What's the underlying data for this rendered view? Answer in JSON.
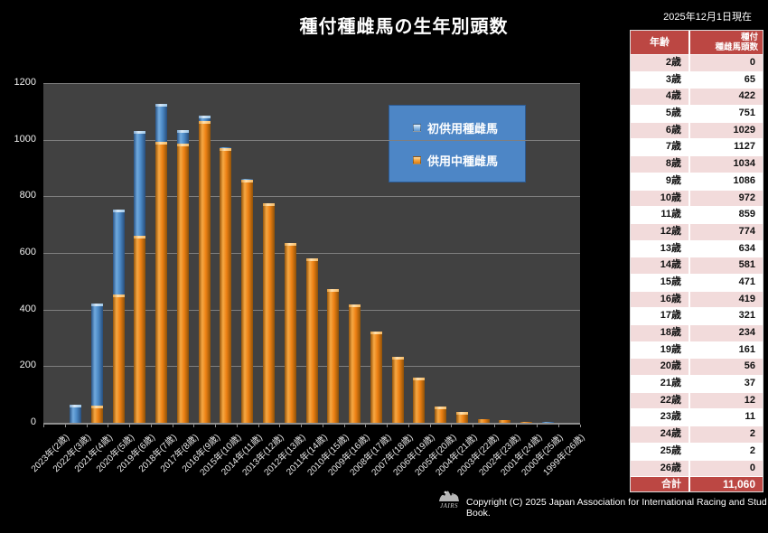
{
  "page": {
    "date_label": "2025年12月1日現在",
    "title": "種付種雌馬の生年別頭数"
  },
  "colors": {
    "background": "#000000",
    "plot_background": "#414141",
    "gridline": "#7f7f7f",
    "bar_blue": "#5b94cf",
    "bar_orange": "#ec8013",
    "legend_background": "#4d86c6",
    "table_header_background": "#bc4743",
    "table_row_pink": "#f2dbdb",
    "table_row_white": "#ffffff"
  },
  "chart_data": {
    "type": "bar",
    "stacked": true,
    "title": "種付種雌馬の生年別頭数",
    "xlabel": "",
    "ylabel": "",
    "ylim": [
      0,
      1200
    ],
    "yticks": [
      0,
      200,
      400,
      600,
      800,
      1000,
      1200
    ],
    "grid": true,
    "legend_position": "inside-upper-right",
    "categories": [
      "2023年(2歳)",
      "2022年(3歳)",
      "2021年(4歳)",
      "2020年(5歳)",
      "2019年(6歳)",
      "2018年(7歳)",
      "2017年(8歳)",
      "2016年(9歳)",
      "2015年(10歳)",
      "2014年(11歳)",
      "2013年(12歳)",
      "2012年(13歳)",
      "2011年(14歳)",
      "2010年(15歳)",
      "2009年(16歳)",
      "2008年(17歳)",
      "2007年(18歳)",
      "2006年(19歳)",
      "2005年(20歳)",
      "2004年(21歳)",
      "2003年(22歳)",
      "2002年(23歳)",
      "2001年(24歳)",
      "2000年(25歳)",
      "1999年(26歳)"
    ],
    "series": [
      {
        "name": "初供用種雌馬",
        "color_key": "blue",
        "values": [
          0,
          65,
          362,
          299,
          369,
          133,
          47,
          19,
          2,
          2,
          0,
          0,
          0,
          0,
          0,
          0,
          0,
          0,
          0,
          0,
          0,
          0,
          0,
          2,
          0
        ]
      },
      {
        "name": "供用中種雌馬",
        "color_key": "orange",
        "values": [
          0,
          0,
          60,
          452,
          660,
          994,
          987,
          1067,
          970,
          857,
          774,
          634,
          581,
          471,
          419,
          321,
          234,
          161,
          56,
          37,
          12,
          11,
          2,
          0,
          0
        ]
      }
    ],
    "stack_order_bottom_to_top": [
      "供用中種雌馬",
      "初供用種雌馬"
    ],
    "totals": [
      0,
      65,
      422,
      751,
      1029,
      1127,
      1034,
      1086,
      972,
      859,
      774,
      634,
      581,
      471,
      419,
      321,
      234,
      161,
      56,
      37,
      12,
      11,
      2,
      2,
      0
    ]
  },
  "table": {
    "header_age": "年齢",
    "header_count": "種付\n種雌馬頭数",
    "rows": [
      [
        "2歳",
        "0"
      ],
      [
        "3歳",
        "65"
      ],
      [
        "4歳",
        "422"
      ],
      [
        "5歳",
        "751"
      ],
      [
        "6歳",
        "1029"
      ],
      [
        "7歳",
        "1127"
      ],
      [
        "8歳",
        "1034"
      ],
      [
        "9歳",
        "1086"
      ],
      [
        "10歳",
        "972"
      ],
      [
        "11歳",
        "859"
      ],
      [
        "12歳",
        "774"
      ],
      [
        "13歳",
        "634"
      ],
      [
        "14歳",
        "581"
      ],
      [
        "15歳",
        "471"
      ],
      [
        "16歳",
        "419"
      ],
      [
        "17歳",
        "321"
      ],
      [
        "18歳",
        "234"
      ],
      [
        "19歳",
        "161"
      ],
      [
        "20歳",
        "56"
      ],
      [
        "21歳",
        "37"
      ],
      [
        "22歳",
        "12"
      ],
      [
        "23歳",
        "11"
      ],
      [
        "24歳",
        "2"
      ],
      [
        "25歳",
        "2"
      ],
      [
        "26歳",
        "0"
      ]
    ],
    "total_label": "合計",
    "total_value": "11,060"
  },
  "footer": {
    "logo_text": "JAIRS",
    "copyright": "Copyright (C) 2025 Japan Association for International Racing and Stud Book."
  }
}
